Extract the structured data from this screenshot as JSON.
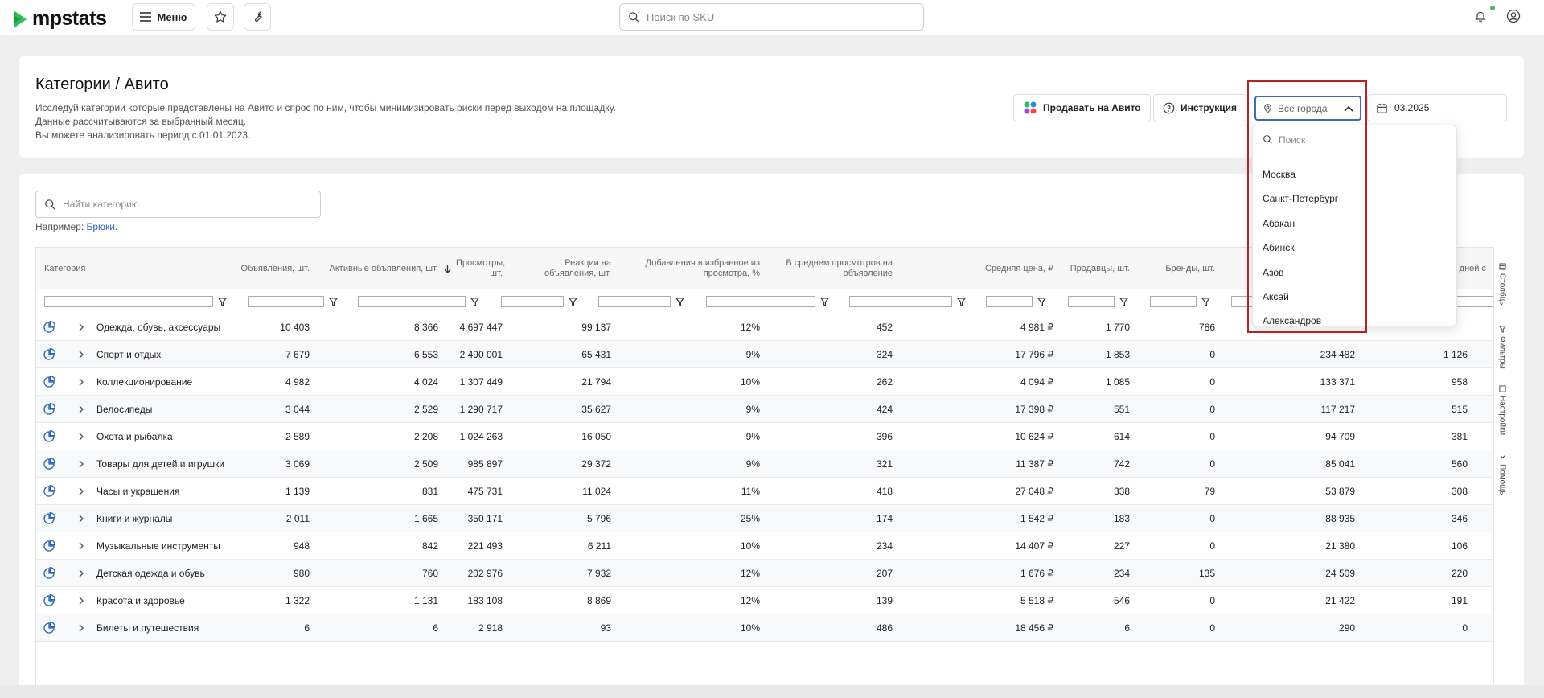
{
  "app": {
    "logo_text": "mpstats",
    "menu_label": "Меню",
    "sku_search_placeholder": "Поиск по SKU"
  },
  "page": {
    "title": "Категории / Авито",
    "desc_lines": [
      "Исследуй категории которые представлены на Авито и спрос по ним, чтобы минимизировать риски перед выходом на площадку.",
      "Данные рассчитываются за выбранный месяц.",
      "Вы можете анализировать период с 01.01.2023."
    ],
    "sell_button": "Продавать на Авито",
    "instruction_button": "Инструкция",
    "city_select_value": "Все города",
    "date_value": "03.2025"
  },
  "city_dropdown": {
    "search_placeholder": "Поиск",
    "items": [
      "Москва",
      "Санкт-Петербург",
      "Абакан",
      "Абинск",
      "Азов",
      "Аксай",
      "Александров"
    ]
  },
  "category_search": {
    "placeholder": "Найти категорию",
    "example_label": "Например:",
    "example_link": "Брюки"
  },
  "table": {
    "headers": [
      "Категория",
      "Объявления, шт.",
      "Активные объявления, шт.",
      "Просмотры, шт.",
      "Реакции на объявления, шт.",
      "Добавления в избранное из просмотра, %",
      "В среднем просмотров на объявление",
      "Средняя цена, ₽",
      "Продавцы, шт.",
      "Бренды, шт.",
      "",
      "",
      "Средн. дней с"
    ],
    "rows": [
      [
        "Одежда, обувь, аксессуары",
        "10 403",
        "8 366",
        "4 697 447",
        "99 137",
        "12%",
        "452",
        "4 981 ₽",
        "1 770",
        "786",
        "",
        ""
      ],
      [
        "Спорт и отдых",
        "7 679",
        "6 553",
        "2 490 001",
        "65 431",
        "9%",
        "324",
        "17 796 ₽",
        "1 853",
        "0",
        "234 482",
        "1 126"
      ],
      [
        "Коллекционирование",
        "4 982",
        "4 024",
        "1 307 449",
        "21 794",
        "10%",
        "262",
        "4 094 ₽",
        "1 085",
        "0",
        "133 371",
        "958"
      ],
      [
        "Велосипеды",
        "3 044",
        "2 529",
        "1 290 717",
        "35 627",
        "9%",
        "424",
        "17 398 ₽",
        "551",
        "0",
        "117 217",
        "515"
      ],
      [
        "Охота и рыбалка",
        "2 589",
        "2 208",
        "1 024 263",
        "16 050",
        "9%",
        "396",
        "10 624 ₽",
        "614",
        "0",
        "94 709",
        "381"
      ],
      [
        "Товары для детей и игрушки",
        "3 069",
        "2 509",
        "985 897",
        "29 372",
        "9%",
        "321",
        "11 387 ₽",
        "742",
        "0",
        "85 041",
        "560"
      ],
      [
        "Часы и украшения",
        "1 139",
        "831",
        "475 731",
        "11 024",
        "11%",
        "418",
        "27 048 ₽",
        "338",
        "79",
        "53 879",
        "308"
      ],
      [
        "Книги и журналы",
        "2 011",
        "1 665",
        "350 171",
        "5 796",
        "25%",
        "174",
        "1 542 ₽",
        "183",
        "0",
        "88 935",
        "346"
      ],
      [
        "Музыкальные инструменты",
        "948",
        "842",
        "221 493",
        "6 211",
        "10%",
        "234",
        "14 407 ₽",
        "227",
        "0",
        "21 380",
        "106"
      ],
      [
        "Детская одежда и обувь",
        "980",
        "760",
        "202 976",
        "7 932",
        "12%",
        "207",
        "1 676 ₽",
        "234",
        "135",
        "24 509",
        "220"
      ],
      [
        "Красота и здоровье",
        "1 322",
        "1 131",
        "183 108",
        "8 869",
        "12%",
        "139",
        "5 518 ₽",
        "546",
        "0",
        "21 422",
        "191"
      ],
      [
        "Билеты и путешествия",
        "6",
        "6",
        "2 918",
        "93",
        "10%",
        "486",
        "18 456 ₽",
        "6",
        "0",
        "290",
        "0"
      ]
    ]
  },
  "side_tabs": [
    "Столбцы",
    "Фильтры",
    "Настройки",
    "Помощь"
  ],
  "colors": {
    "accent": "#3f6da8",
    "highlight": "#b52424",
    "logo_green": "#2ebd59",
    "pie_blue": "#2a63b8"
  }
}
